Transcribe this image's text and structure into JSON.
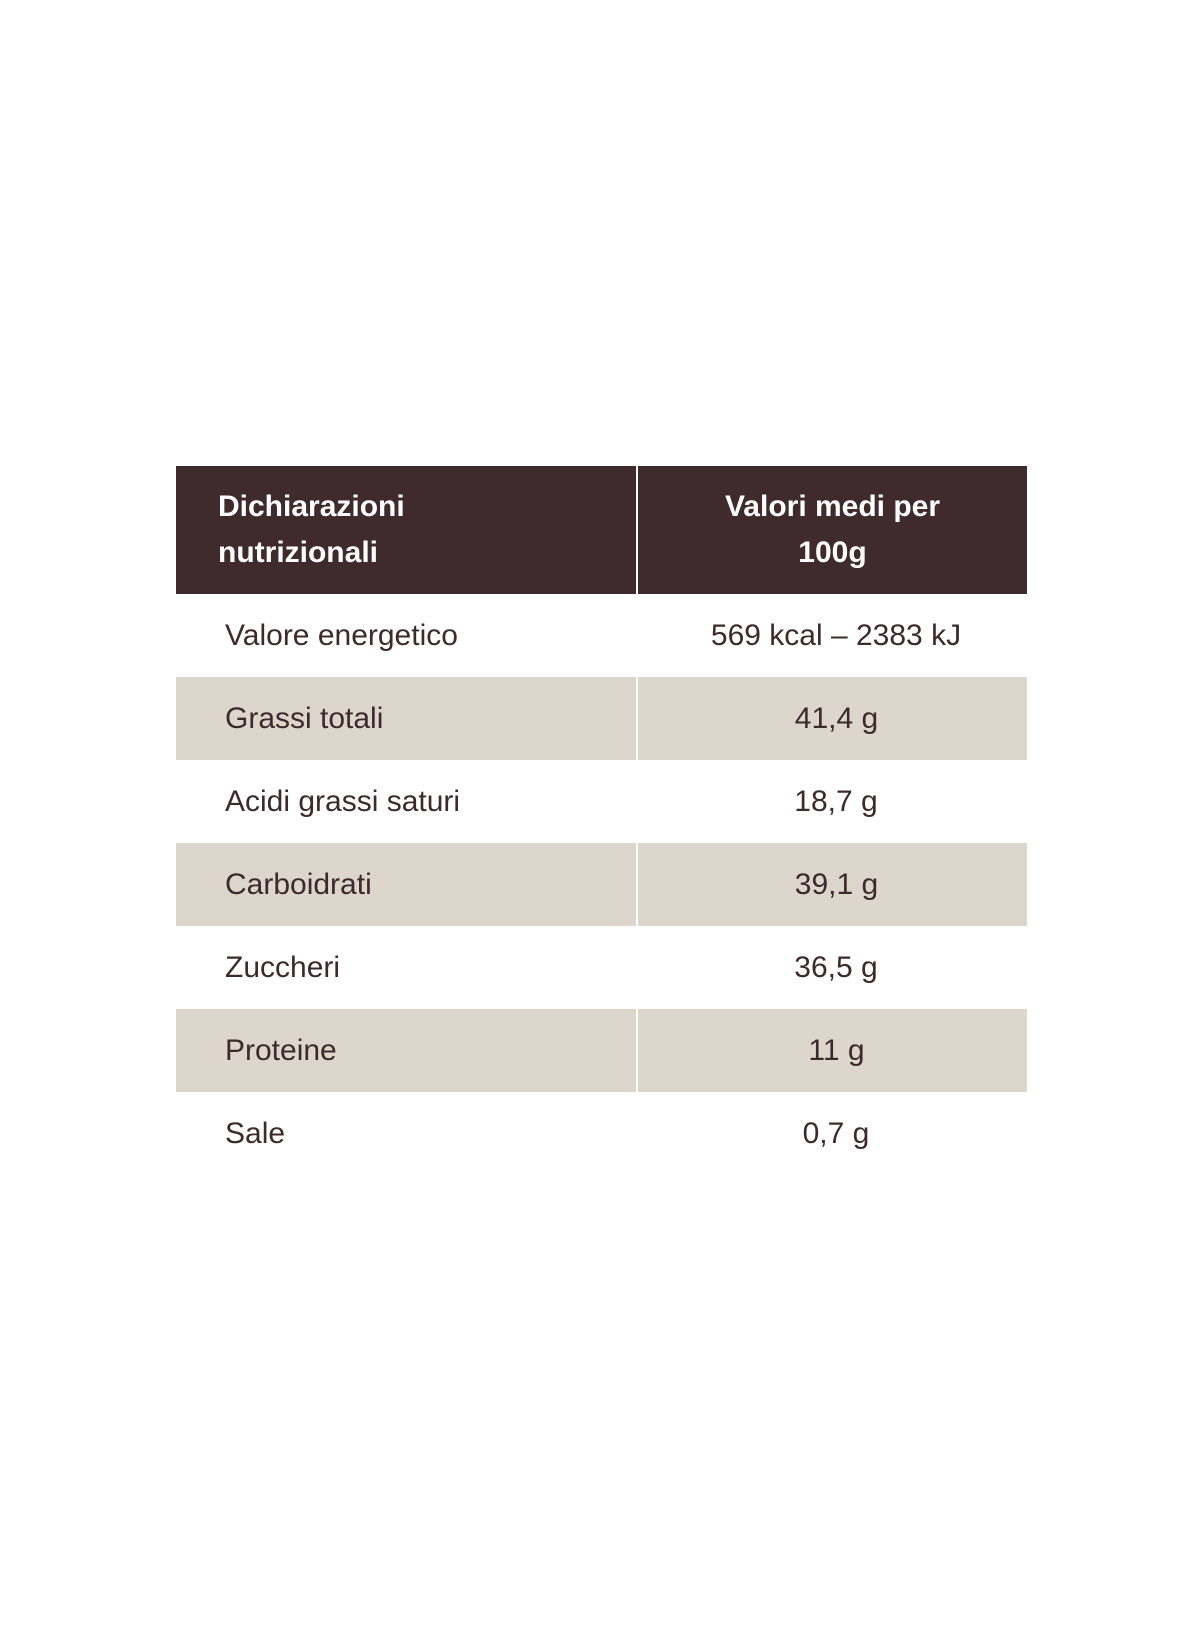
{
  "table": {
    "header": {
      "col1": "Dichiarazioni nutrizionali",
      "col2": "Valori medi per 100g"
    },
    "rows": [
      {
        "name": "Valore energetico",
        "value": "569 kcal – 2383 kJ"
      },
      {
        "name": "Grassi totali",
        "value": "41,4 g"
      },
      {
        "name": "Acidi grassi saturi",
        "value": "18,7 g"
      },
      {
        "name": "Carboidrati",
        "value": "39,1 g"
      },
      {
        "name": "Zuccheri",
        "value": "36,5 g"
      },
      {
        "name": "Proteine",
        "value": "11 g"
      },
      {
        "name": "Sale",
        "value": "0,7 g"
      }
    ]
  },
  "colors": {
    "header_background": "#3f2a2e",
    "shaded_row_background": "#dcd6cc",
    "text": "#3c2a2d"
  }
}
